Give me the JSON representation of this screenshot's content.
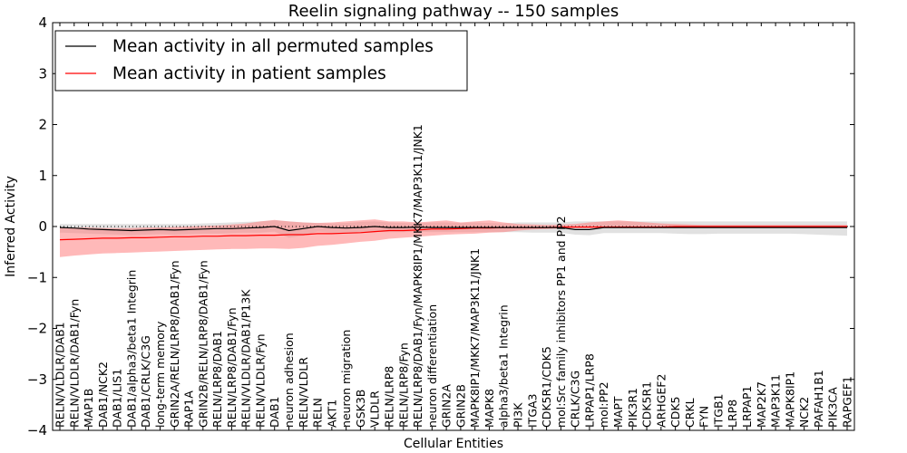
{
  "chart_data": {
    "type": "line",
    "title": "Reelin signaling pathway -- 150 samples",
    "xlabel": "Cellular Entities",
    "ylabel": "Inferred Activity",
    "ylim": [
      -4,
      4
    ],
    "yticks": [
      -4,
      -3,
      -2,
      -1,
      0,
      1,
      2,
      3,
      4
    ],
    "ytick_labels": [
      "−4",
      "−3",
      "−2",
      "−1",
      "0",
      "1",
      "2",
      "3",
      "4"
    ],
    "legend_position": "top-left",
    "reference_line": {
      "y": 0,
      "style": "dotted"
    },
    "categories": [
      "RELN/VLDLR/DAB1",
      "RELN/VLDLR/DAB1/Fyn",
      "MAP1B",
      "DAB1/NCK2",
      "DAB1/LIS1",
      "DAB1/alpha3/beta1 Integrin",
      "DAB1/CRLK/C3G",
      "long-term memory",
      "GRIN2A/RELN/LRP8/DAB1/Fyn",
      "RAP1A",
      "GRIN2B/RELN/LRP8/DAB1/Fyn",
      "RELN/LRP8/DAB1",
      "RELN/LRP8/DAB1/Fyn",
      "RELN/VLDLR/DAB1/P13K",
      "RELN/VLDLR/Fyn",
      "DAB1",
      "neuron adhesion",
      "RELN/VLDLR",
      "RELN",
      "AKT1",
      "neuron migration",
      "GSK3B",
      "VLDLR",
      "RELN/LRP8",
      "RELN/LRP8/Fyn",
      "RELN/LRP8/DAB1/Fyn/MAPK8IP1/MKK7/MAP3K11/JNK1",
      "neuron differentiation",
      "GRIN2A",
      "GRIN2B",
      "MAPK8IP1/MKK7/MAP3K11/JNK1",
      "MAPK8",
      "alpha3/beta1 Integrin",
      "PI3K",
      "ITGA3",
      "CDK5R1/CDK5",
      "mol:Src family inhibitors PP1 and PP2",
      "CRLK/C3G",
      "LRPAP1/LRP8",
      "mol:PP2",
      "MAPT",
      "PIK3R1",
      "CDK5R1",
      "ARHGEF2",
      "CDK5",
      "CRKL",
      "FYN",
      "ITGB1",
      "LRP8",
      "LRPAP1",
      "MAP2K7",
      "MAP3K11",
      "MAPK8IP1",
      "NCK2",
      "PAFAH1B1",
      "PIK3CA",
      "RAPGEF1"
    ],
    "series": [
      {
        "name": "Mean activity in all permuted samples",
        "color": "#000000",
        "band_color": "#c8c8c8",
        "values": [
          -0.02,
          -0.03,
          -0.05,
          -0.06,
          -0.07,
          -0.08,
          -0.07,
          -0.06,
          -0.07,
          -0.06,
          -0.05,
          -0.04,
          -0.04,
          -0.03,
          -0.02,
          0.0,
          -0.08,
          -0.04,
          0.0,
          -0.02,
          -0.03,
          -0.02,
          0.0,
          -0.02,
          -0.02,
          -0.01,
          -0.02,
          -0.02,
          -0.02,
          -0.02,
          -0.02,
          -0.02,
          -0.02,
          -0.02,
          -0.02,
          -0.02,
          -0.06,
          -0.06,
          -0.02,
          -0.02,
          -0.02,
          -0.02,
          -0.02,
          -0.02,
          -0.02,
          -0.02,
          -0.02,
          -0.02,
          -0.02,
          -0.02,
          -0.02,
          -0.02,
          -0.02,
          -0.02,
          -0.02,
          -0.02
        ],
        "upper": [
          0.05,
          0.05,
          0.05,
          0.05,
          0.05,
          0.05,
          0.05,
          0.05,
          0.05,
          0.05,
          0.06,
          0.07,
          0.08,
          0.09,
          0.1,
          0.12,
          0.1,
          0.08,
          0.07,
          0.06,
          0.07,
          0.09,
          0.1,
          0.08,
          0.07,
          0.06,
          0.08,
          0.08,
          0.07,
          0.08,
          0.07,
          0.06,
          0.08,
          0.08,
          0.08,
          0.08,
          0.1,
          0.1,
          0.1,
          0.1,
          0.1,
          0.1,
          0.1,
          0.1,
          0.1,
          0.1,
          0.1,
          0.1,
          0.1,
          0.1,
          0.1,
          0.1,
          0.1,
          0.1,
          0.1,
          0.1
        ],
        "lower": [
          -0.12,
          -0.13,
          -0.14,
          -0.15,
          -0.16,
          -0.17,
          -0.16,
          -0.15,
          -0.16,
          -0.15,
          -0.14,
          -0.14,
          -0.13,
          -0.12,
          -0.12,
          -0.1,
          -0.22,
          -0.18,
          -0.1,
          -0.12,
          -0.12,
          -0.11,
          -0.1,
          -0.11,
          -0.11,
          -0.1,
          -0.11,
          -0.11,
          -0.11,
          -0.11,
          -0.11,
          -0.11,
          -0.11,
          -0.12,
          -0.12,
          -0.12,
          -0.16,
          -0.17,
          -0.13,
          -0.13,
          -0.13,
          -0.13,
          -0.13,
          -0.14,
          -0.15,
          -0.15,
          -0.14,
          -0.14,
          -0.14,
          -0.14,
          -0.14,
          -0.14,
          -0.15,
          -0.16,
          -0.17,
          -0.18
        ]
      },
      {
        "name": "Mean activity in patient samples",
        "color": "#ff0000",
        "band_color": "#ff8080",
        "values": [
          -0.26,
          -0.25,
          -0.24,
          -0.23,
          -0.23,
          -0.22,
          -0.22,
          -0.21,
          -0.2,
          -0.2,
          -0.19,
          -0.19,
          -0.18,
          -0.18,
          -0.17,
          -0.17,
          -0.16,
          -0.16,
          -0.14,
          -0.14,
          -0.13,
          -0.12,
          -0.1,
          -0.08,
          -0.08,
          -0.07,
          -0.05,
          -0.05,
          -0.04,
          -0.03,
          -0.03,
          -0.02,
          -0.02,
          -0.02,
          -0.02,
          -0.01,
          -0.01,
          -0.01,
          -0.01,
          -0.01,
          -0.01,
          -0.01,
          -0.01,
          0.0,
          0.0,
          0.0,
          0.0,
          0.0,
          0.0,
          0.0,
          0.0,
          0.0,
          0.0,
          0.0,
          0.0,
          0.0
        ],
        "upper": [
          -0.02,
          -0.02,
          -0.02,
          -0.03,
          -0.03,
          -0.03,
          -0.02,
          -0.02,
          -0.01,
          0.0,
          0.01,
          0.02,
          0.04,
          0.06,
          0.1,
          0.13,
          0.1,
          0.08,
          0.07,
          0.08,
          0.1,
          0.12,
          0.14,
          0.1,
          0.1,
          0.08,
          0.1,
          0.12,
          0.08,
          0.1,
          0.12,
          0.08,
          0.05,
          0.04,
          0.03,
          0.04,
          0.05,
          0.08,
          0.1,
          0.12,
          0.1,
          0.08,
          0.06,
          0.05,
          0.04,
          0.03,
          0.03,
          0.03,
          0.03,
          0.03,
          0.03,
          0.03,
          0.03,
          0.03,
          0.03,
          0.03
        ],
        "lower": [
          -0.6,
          -0.57,
          -0.55,
          -0.53,
          -0.52,
          -0.51,
          -0.5,
          -0.49,
          -0.48,
          -0.47,
          -0.46,
          -0.45,
          -0.44,
          -0.44,
          -0.43,
          -0.43,
          -0.44,
          -0.42,
          -0.38,
          -0.36,
          -0.33,
          -0.3,
          -0.28,
          -0.24,
          -0.22,
          -0.2,
          -0.18,
          -0.16,
          -0.15,
          -0.14,
          -0.12,
          -0.11,
          -0.08,
          -0.06,
          -0.05,
          -0.04,
          -0.03,
          -0.03,
          -0.02,
          -0.02,
          -0.02,
          -0.02,
          -0.01,
          -0.01,
          -0.01,
          -0.01,
          -0.01,
          -0.01,
          -0.01,
          -0.01,
          -0.01,
          -0.01,
          -0.01,
          -0.01,
          -0.01,
          -0.01
        ]
      }
    ]
  }
}
